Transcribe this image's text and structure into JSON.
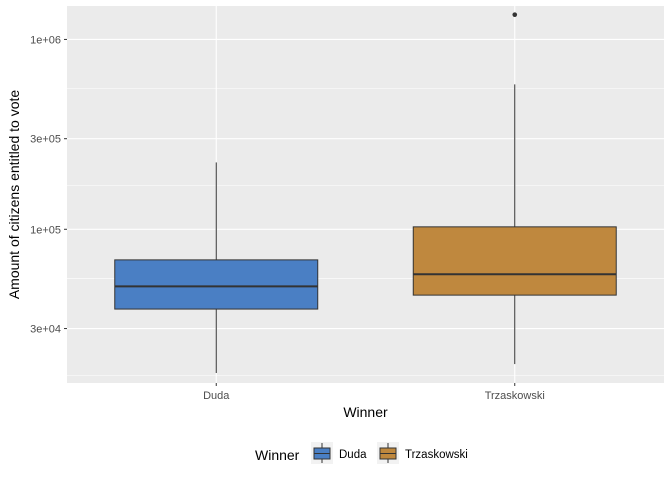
{
  "chart_data": {
    "type": "boxplot",
    "xlabel": "Winner",
    "ylabel": "Amount of citizens entitled to vote",
    "y_scale": "log10",
    "ylim": [
      15500,
      1500000
    ],
    "y_ticks": [
      {
        "value": 30000,
        "label": "3e+04"
      },
      {
        "value": 100000,
        "label": "1e+05"
      },
      {
        "value": 300000,
        "label": "3e+05"
      },
      {
        "value": 1000000,
        "label": "1e+06"
      }
    ],
    "y_minor_ticks": [
      17000,
      55000,
      170000,
      550000
    ],
    "grid": true,
    "legend_position": "bottom",
    "legend": {
      "title": "Winner",
      "entries": [
        "Duda",
        "Trzaskowski"
      ]
    },
    "categories": [
      "Duda",
      "Trzaskowski"
    ],
    "boxes": [
      {
        "category": "Duda",
        "min": 17500,
        "q1": 38000,
        "median": 50000,
        "q3": 69000,
        "max": 225000,
        "outliers": [],
        "color": "#4a7fc4"
      },
      {
        "category": "Trzaskowski",
        "min": 19500,
        "q1": 45000,
        "median": 58000,
        "q3": 103000,
        "max": 580000,
        "outliers": [
          1350000
        ],
        "color": "#bf883e"
      }
    ]
  }
}
